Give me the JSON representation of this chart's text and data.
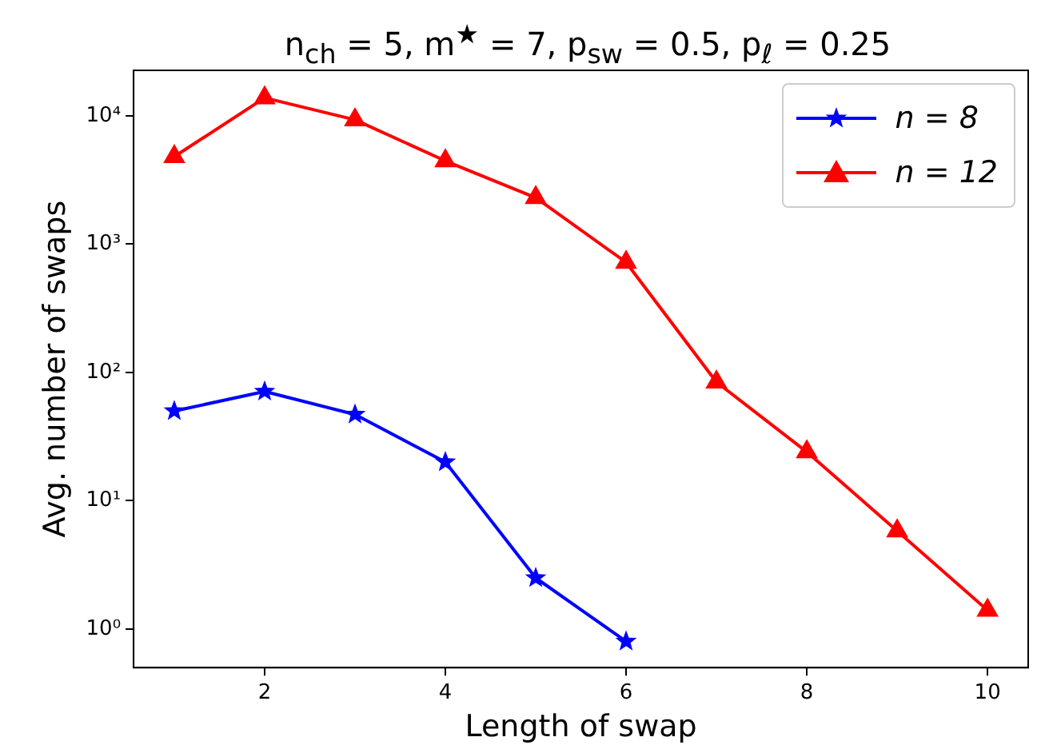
{
  "chart_data": {
    "type": "line",
    "title": "n$_{ch}$ = 5, m$^{★}$ = 7, p$_{sw}$ = 0.5, p$_{ℓ}$ = 0.25",
    "xlabel": "Length of swap",
    "ylabel": "Avg. number of swaps",
    "log": "y",
    "grid": false,
    "legend": "top right",
    "xlim": [
      0.55,
      10.45
    ],
    "xticks": [
      2,
      4,
      6,
      8,
      10
    ],
    "ylim": [
      0.5,
      22600
    ],
    "yticks": [
      {
        "value": 1,
        "label": "10⁰"
      },
      {
        "value": 10,
        "label": "10¹"
      },
      {
        "value": 100,
        "label": "10²"
      },
      {
        "value": 1000,
        "label": "10³"
      },
      {
        "value": 10000,
        "label": "10⁴"
      }
    ],
    "series": [
      {
        "name": "n = 8",
        "color": "#0000ff",
        "marker": "star",
        "x": [
          1,
          2,
          3,
          4,
          5,
          6
        ],
        "values": [
          50,
          71,
          47,
          20,
          2.5,
          0.8
        ]
      },
      {
        "name": "n = 12",
        "color": "#ff0000",
        "marker": "triangle",
        "x": [
          1,
          2,
          3,
          4,
          5,
          6,
          7,
          8,
          9,
          10
        ],
        "values": [
          4800,
          13800,
          9300,
          4450,
          2300,
          720,
          84,
          24,
          5.8,
          1.4
        ]
      }
    ]
  }
}
